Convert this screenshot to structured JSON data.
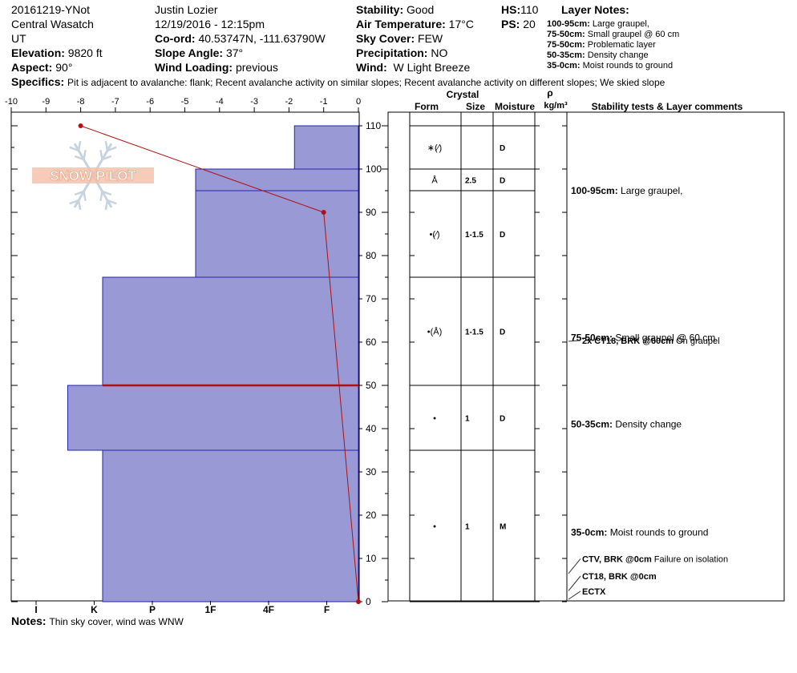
{
  "header": {
    "left": {
      "pit_id": "20161219-YNot",
      "range": "Central Wasatch",
      "state": "UT",
      "elevation_label": "Elevation:",
      "elevation_value": "9820 ft",
      "aspect_label": "Aspect:",
      "aspect_value": "90°"
    },
    "middle": {
      "observer": "Justin Lozier",
      "datetime": "12/19/2016 - 12:15pm",
      "coord_label": "Co-ord:",
      "coord_value": "40.53747N, -111.63790W",
      "slope_label": "Slope Angle:",
      "slope_value": "37°",
      "wind_loading_label": "Wind Loading:",
      "wind_loading_value": "previous"
    },
    "conditions": {
      "stability_label": "Stability:",
      "stability_value": "Good",
      "air_temp_label": "Air Temperature:",
      "air_temp_value": "17°C",
      "sky_label": "Sky Cover:",
      "sky_value": "FEW",
      "precip_label": "Precipitation:",
      "precip_value": "NO",
      "wind_label": "Wind:",
      "wind_value": "W Light Breeze"
    },
    "depth": {
      "hs_label": "HS:",
      "hs_value": "110",
      "ps_label": "PS:",
      "ps_value": "20"
    },
    "layer_notes": {
      "title": "Layer Notes:",
      "items": [
        {
          "range": "100-95cm:",
          "text": "Large graupel,"
        },
        {
          "range": "75-50cm:",
          "text": "Small graupel @ 60 cm"
        },
        {
          "range": "75-50cm:",
          "text": "Problematic layer"
        },
        {
          "range": "50-35cm:",
          "text": "Density change"
        },
        {
          "range": "35-0cm:",
          "text": "Moist rounds to ground"
        }
      ]
    },
    "specifics_label": "Specifics:",
    "specifics_text": "Pit is adjacent to avalanche: flank;  Recent avalanche activity on similar slopes;  Recent avalanche activity on different slopes;  We skied slope"
  },
  "logo_text": "SNOW PILOT",
  "notes_label": "Notes:",
  "notes_text": "Thin sky cover, wind was WNW",
  "table": {
    "crystal_label": "Crystal",
    "form_label": "Form",
    "size_label": "Size",
    "moisture_label": "Moisture",
    "rho_label": "ρ",
    "density_unit": "kg/m³",
    "comments_label": "Stability tests & Layer comments",
    "rows": [
      {
        "top": 110,
        "bottom": 100,
        "form": "∗(⁄)",
        "size": "",
        "moisture": "D"
      },
      {
        "top": 100,
        "bottom": 95,
        "form": "Å",
        "size": "2.5",
        "moisture": "D"
      },
      {
        "top": 95,
        "bottom": 75,
        "form": "•(⁄)",
        "size": "1-1.5",
        "moisture": "D"
      },
      {
        "top": 75,
        "bottom": 50,
        "form": "•(Å)",
        "size": "1-1.5",
        "moisture": "D"
      },
      {
        "top": 50,
        "bottom": 35,
        "form": "•",
        "size": "1",
        "moisture": "D"
      },
      {
        "top": 35,
        "bottom": 0,
        "form": "•",
        "size": "1",
        "moisture": "M"
      }
    ],
    "layer_comments": [
      {
        "depth": 95,
        "range": "100-95cm:",
        "text": "Large graupel,"
      },
      {
        "depth": 61,
        "range": "75-50cm:",
        "text": "Small graupel @ 60 cm"
      },
      {
        "depth": 41,
        "range": "50-35cm:",
        "text": "Density change"
      },
      {
        "depth": 16,
        "range": "35-0cm:",
        "text": "Moist rounds to ground"
      }
    ],
    "stability_tests": [
      {
        "depth": 60,
        "label": "2x CT18, BRK @60cm",
        "comment": "On graupel"
      },
      {
        "depth": 9,
        "label": "CTV, BRK @0cm",
        "comment": "Failure on isolation"
      },
      {
        "depth": 5,
        "label": "CT18, BRK @0cm",
        "comment": ""
      },
      {
        "depth": 1.5,
        "label": "ECTX",
        "comment": ""
      }
    ]
  },
  "chart_data": {
    "type": "line",
    "title": "",
    "xlabel": "",
    "ylabel": "",
    "temp_axis": {
      "range": [
        -10,
        0
      ],
      "ticks": [
        -10,
        -9,
        -8,
        -7,
        -6,
        -5,
        -4,
        -3,
        -2,
        -1,
        0
      ]
    },
    "depth_axis": {
      "range": [
        0,
        110
      ],
      "ticks": [
        0,
        10,
        20,
        30,
        40,
        50,
        60,
        70,
        80,
        90,
        100,
        110
      ]
    },
    "hardness_axis": {
      "labels": [
        "I",
        "K",
        "P",
        "1F",
        "4F",
        "F"
      ]
    },
    "temperature_profile": [
      {
        "depth": 110,
        "temp": -8
      },
      {
        "depth": 90,
        "temp": -1
      },
      {
        "depth": 0,
        "temp": 0
      }
    ],
    "hardness_profile": [
      {
        "top": 110,
        "bottom": 100,
        "hardness_index": 1.1
      },
      {
        "top": 100,
        "bottom": 95,
        "hardness_index": 2.8
      },
      {
        "top": 95,
        "bottom": 75,
        "hardness_index": 2.8
      },
      {
        "top": 75,
        "bottom": 50,
        "hardness_index": 4.4
      },
      {
        "top": 50,
        "bottom": 35,
        "hardness_index": 5.0
      },
      {
        "top": 35,
        "bottom": 0,
        "hardness_index": 4.4
      }
    ],
    "problem_layer_depth": 50,
    "colors": {
      "hardness_fill": "#9999d6",
      "hardness_stroke": "#2525aa",
      "temperature": "#b01010",
      "problem_layer": "#b01010"
    }
  }
}
